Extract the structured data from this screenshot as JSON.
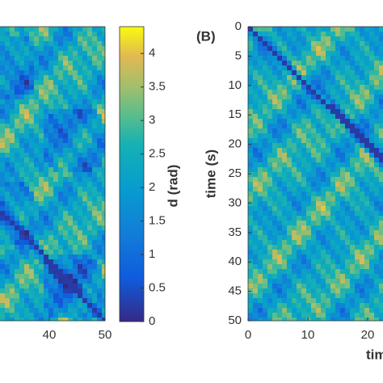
{
  "chart_data": [
    {
      "type": "heatmap",
      "xlim": [
        0,
        50
      ],
      "ylim": [
        50,
        0
      ],
      "xticks": [
        40,
        50
      ]
    },
    {
      "type": "colorbar",
      "label": "d (rad)",
      "ylim": [
        0,
        4.4
      ],
      "yticks": [
        0,
        0.5,
        1,
        1.5,
        2,
        2.5,
        3,
        3.5,
        4
      ]
    },
    {
      "type": "heatmap",
      "panel_label": "(B)",
      "ylabel": "time (s)",
      "xlabel": "time (s)",
      "xlim": [
        0,
        50
      ],
      "ylim": [
        50,
        0
      ],
      "yticks": [
        0,
        5,
        10,
        15,
        20,
        25,
        30,
        35,
        40,
        45,
        50
      ],
      "xticks": [
        0,
        10,
        20
      ]
    }
  ]
}
